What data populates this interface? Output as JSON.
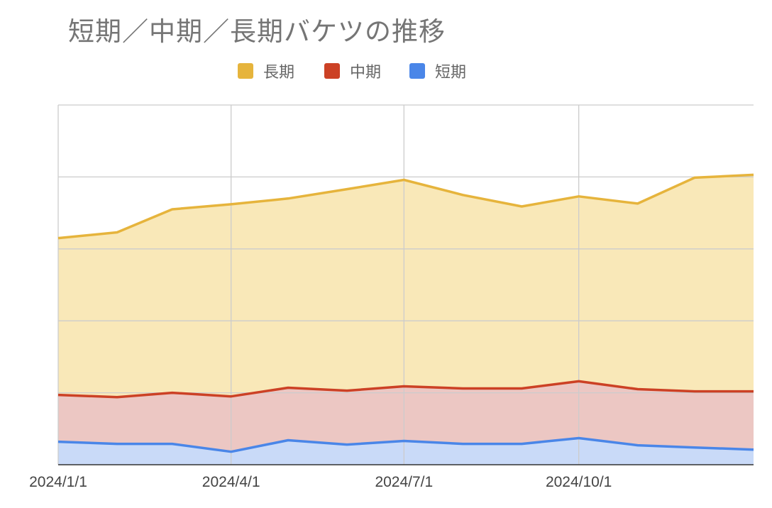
{
  "chart_data": {
    "type": "area",
    "stacked": true,
    "title": "短期／中期／長期バケツの推移",
    "xlabel": "",
    "ylabel": "",
    "x": [
      "2024/1/1",
      "2024/2/1",
      "2024/3/1",
      "2024/4/1",
      "2024/5/1",
      "2024/6/1",
      "2024/7/1",
      "2024/8/1",
      "2024/9/1",
      "2024/10/1",
      "2024/11/1",
      "2024/12/1",
      "2025/1/1"
    ],
    "x_tick_labels": [
      "2024/1/1",
      "2024/4/1",
      "2024/7/1",
      "2024/10/1"
    ],
    "y_tick_labels": [],
    "ylim": [
      0,
      5
    ],
    "y_gridlines": [
      1,
      2,
      3,
      4,
      5
    ],
    "x_gridlines": [
      "2024/1/1",
      "2024/4/1",
      "2024/7/1",
      "2024/10/1"
    ],
    "grid": true,
    "legend_position": "top",
    "series": [
      {
        "name": "短期",
        "color": "#4a86e8",
        "fill": "#c9daf8",
        "values": [
          0.32,
          0.29,
          0.29,
          0.18,
          0.34,
          0.28,
          0.33,
          0.29,
          0.29,
          0.37,
          0.27,
          0.24,
          0.21
        ]
      },
      {
        "name": "中期",
        "color": "#cc4125",
        "fill": "#ecc7c3",
        "values": [
          0.65,
          0.65,
          0.71,
          0.77,
          0.73,
          0.75,
          0.76,
          0.77,
          0.77,
          0.79,
          0.78,
          0.78,
          0.81
        ]
      },
      {
        "name": "長期",
        "color": "#e6b43c",
        "fill": "#f9e8b8",
        "values": [
          2.18,
          2.29,
          2.55,
          2.67,
          2.63,
          2.8,
          2.87,
          2.69,
          2.53,
          2.57,
          2.58,
          2.97,
          3.01
        ]
      }
    ]
  }
}
